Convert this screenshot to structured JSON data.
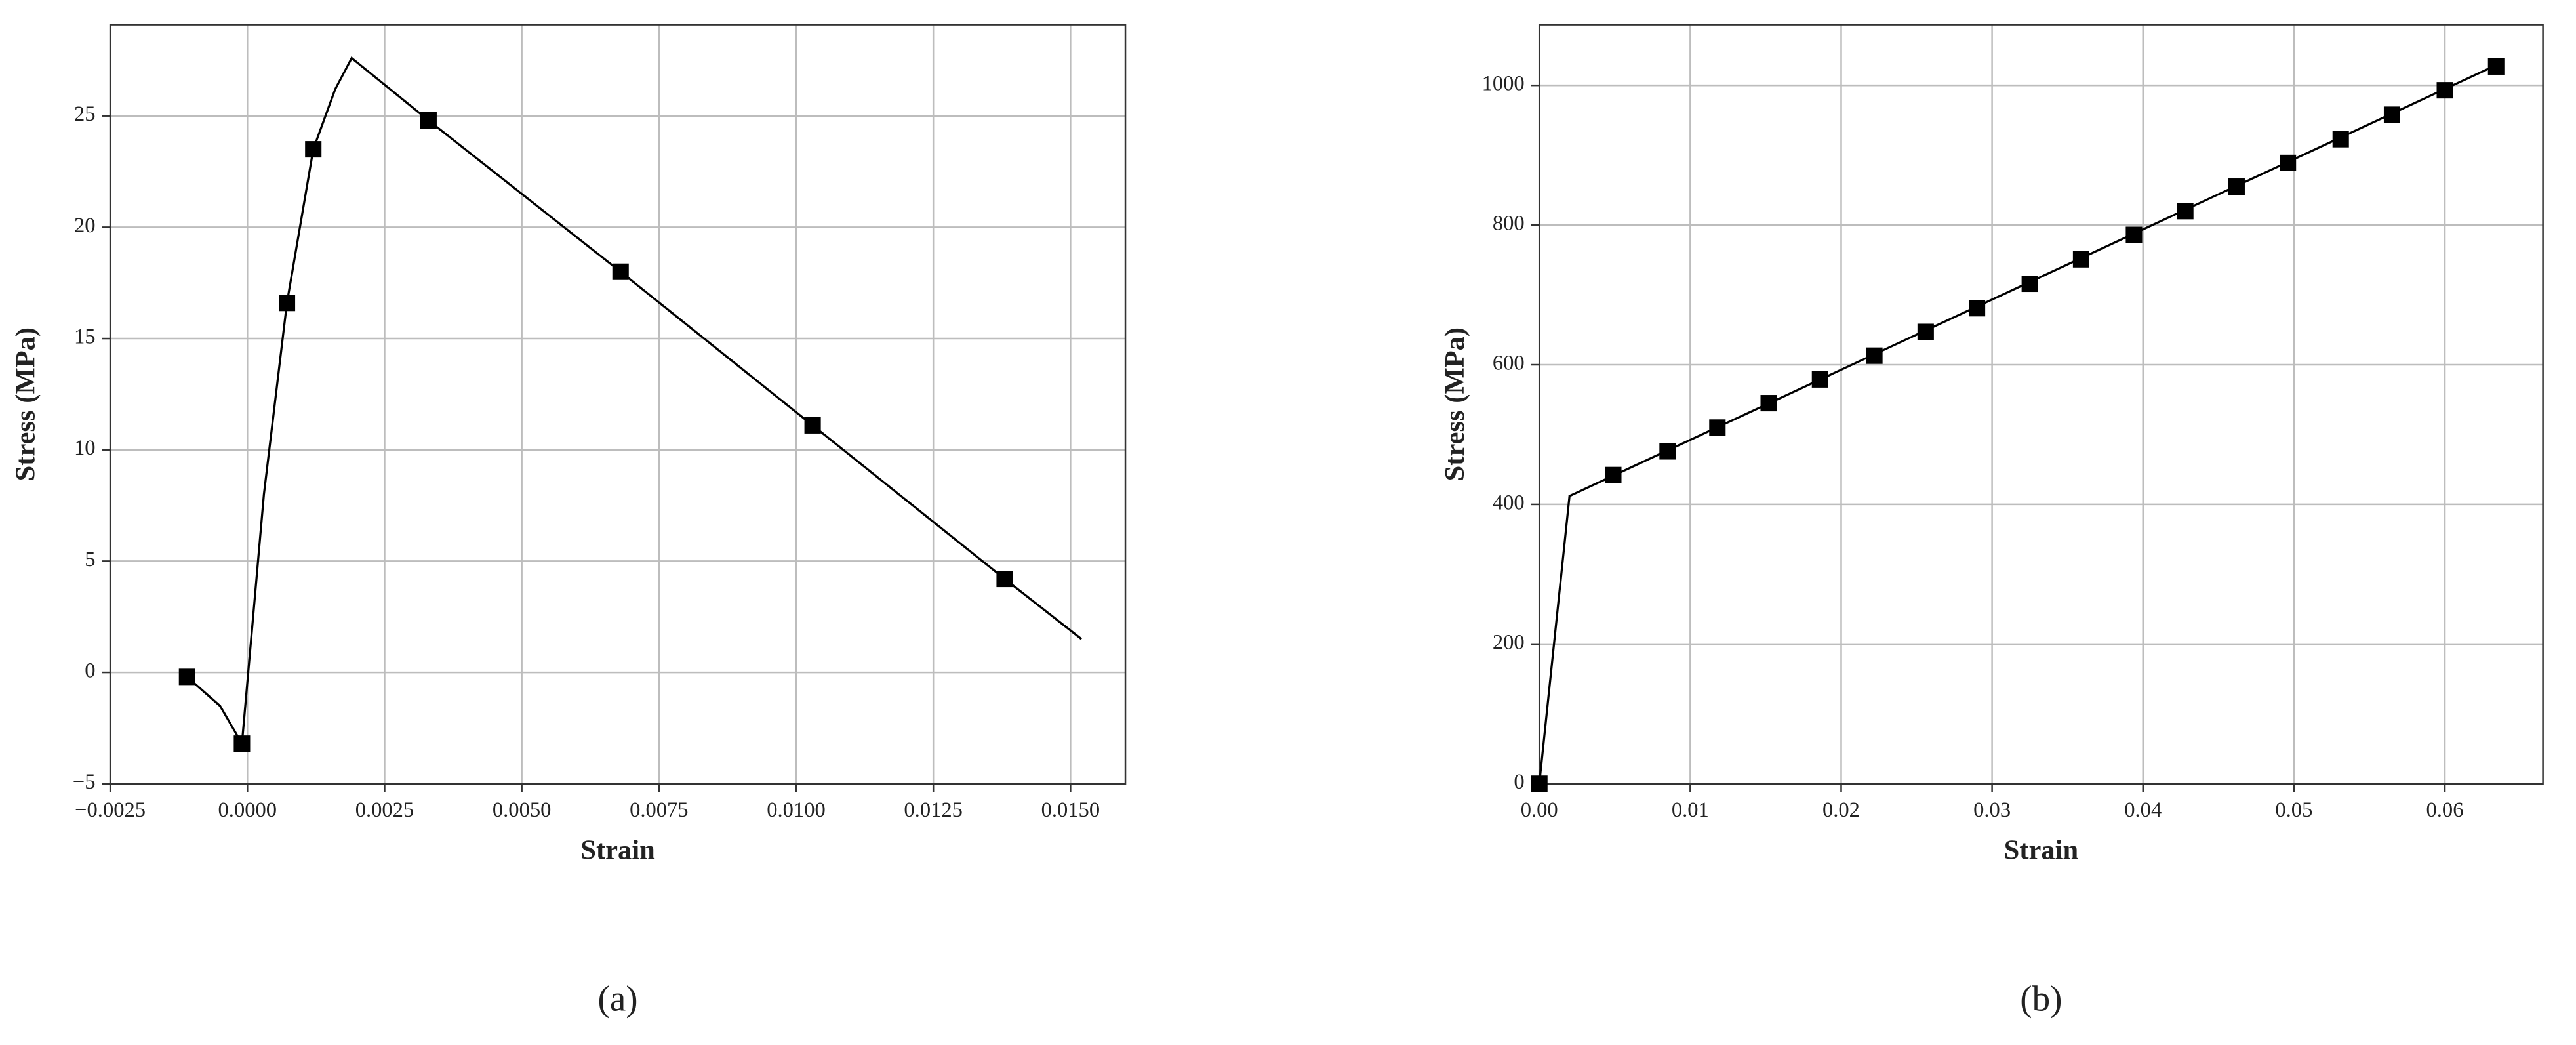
{
  "chart_data": [
    {
      "type": "line",
      "panel_label": "(a)",
      "xlabel": "Strain",
      "ylabel": "Stress (MPa)",
      "grid": true,
      "color": "#000000",
      "xlim": [
        -0.0025,
        0.016
      ],
      "ylim": [
        -5,
        29.1
      ],
      "xticks": [
        {
          "value": -0.0025,
          "label": "−0.0025"
        },
        {
          "value": 0,
          "label": "0.0000"
        },
        {
          "value": 0.0025,
          "label": "0.0025"
        },
        {
          "value": 0.005,
          "label": "0.0050"
        },
        {
          "value": 0.0075,
          "label": "0.0075"
        },
        {
          "value": 0.01,
          "label": "0.0100"
        },
        {
          "value": 0.0125,
          "label": "0.0125"
        },
        {
          "value": 0.015,
          "label": "0.0150"
        }
      ],
      "yticks": [
        {
          "value": -5,
          "label": "−5"
        },
        0,
        5,
        10,
        15,
        20,
        25
      ],
      "line": {
        "x": [
          -0.0011,
          -0.0005,
          -0.0001,
          0.0003,
          0.00072,
          0.0012,
          0.0016,
          0.0019,
          0.0033,
          0.0068,
          0.0103,
          0.0138,
          0.0152
        ],
        "values": [
          -0.2,
          -1.5,
          -3.2,
          8,
          16.6,
          23.5,
          26.2,
          27.6,
          24.8,
          18.0,
          11.1,
          4.2,
          1.5
        ]
      },
      "markers": {
        "x": [
          -0.0011,
          -0.0001,
          0.00072,
          0.0012,
          0.0033,
          0.0068,
          0.0103,
          0.0138
        ],
        "values": [
          -0.2,
          -3.2,
          16.6,
          23.5,
          24.8,
          18.0,
          11.1,
          4.2
        ]
      }
    },
    {
      "type": "line",
      "panel_label": "(b)",
      "xlabel": "Strain",
      "ylabel": "Stress (MPa)",
      "grid": true,
      "color": "#000000",
      "xlim": [
        0,
        0.0665
      ],
      "ylim": [
        0,
        1087
      ],
      "xticks": [
        {
          "value": 0,
          "label": "0.00"
        },
        0.01,
        0.02,
        0.03,
        0.04,
        0.05,
        0.06
      ],
      "yticks": [
        0,
        200,
        400,
        600,
        800,
        1000
      ],
      "line": {
        "x": [
          0,
          0.002,
          0.0635
        ],
        "values": [
          0,
          412,
          1030
        ]
      },
      "markers": {
        "x": [
          0,
          0.0049,
          0.0085,
          0.0118,
          0.0152,
          0.0186,
          0.0222,
          0.0256,
          0.029,
          0.0325,
          0.0359,
          0.0394,
          0.0428,
          0.0462,
          0.0496,
          0.0531,
          0.0565,
          0.06,
          0.0634
        ],
        "values": [
          0,
          442,
          476,
          510,
          545,
          579,
          613,
          647,
          681,
          716,
          751,
          786,
          820,
          855,
          889,
          923,
          958,
          993,
          1027
        ]
      }
    }
  ]
}
